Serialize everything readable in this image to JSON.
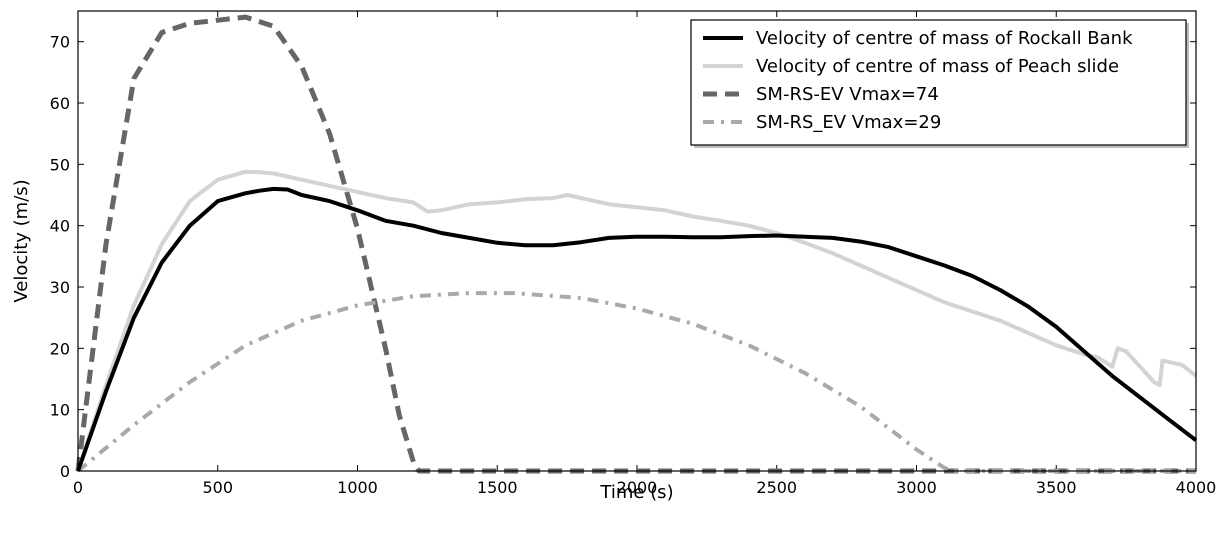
{
  "chart_data": {
    "type": "line",
    "xlabel": "Time (s)",
    "ylabel": "Velocity (m/s)",
    "xlim": [
      0,
      4000
    ],
    "ylim": [
      0,
      75
    ],
    "xticks": [
      0,
      500,
      1000,
      1500,
      2000,
      2500,
      3000,
      3500,
      4000
    ],
    "yticks": [
      0,
      10,
      20,
      30,
      40,
      50,
      60,
      70
    ],
    "grid": false,
    "legend_position": "top-right",
    "series": [
      {
        "name": "Velocity of centre of mass of Rockall Bank",
        "color": "#000000",
        "style": "solid",
        "x": [
          0,
          100,
          200,
          300,
          400,
          500,
          600,
          650,
          700,
          750,
          800,
          900,
          1000,
          1100,
          1200,
          1300,
          1400,
          1500,
          1600,
          1700,
          1800,
          1900,
          2000,
          2100,
          2200,
          2300,
          2400,
          2500,
          2600,
          2700,
          2800,
          2900,
          3000,
          3100,
          3200,
          3300,
          3400,
          3500,
          3600,
          3700,
          3800,
          3900,
          4000
        ],
        "y": [
          0,
          13,
          25,
          34,
          40,
          44,
          45.3,
          45.7,
          46,
          45.9,
          45,
          44,
          42.5,
          40.8,
          40,
          38.8,
          38,
          37.2,
          36.8,
          36.8,
          37.3,
          38,
          38.2,
          38.2,
          38.1,
          38.1,
          38.3,
          38.4,
          38.2,
          38,
          37.4,
          36.5,
          35,
          33.5,
          31.8,
          29.5,
          26.8,
          23.5,
          19.5,
          15.5,
          12,
          8.5,
          5
        ]
      },
      {
        "name": "Velocity of centre of mass of Peach slide",
        "color": "#d3d3d3",
        "style": "solid",
        "x": [
          0,
          100,
          200,
          300,
          400,
          500,
          600,
          650,
          700,
          800,
          900,
          1000,
          1100,
          1200,
          1250,
          1300,
          1400,
          1500,
          1600,
          1700,
          1750,
          1800,
          1900,
          2000,
          2100,
          2200,
          2300,
          2400,
          2500,
          2600,
          2700,
          2800,
          2900,
          3000,
          3100,
          3200,
          3300,
          3400,
          3500,
          3600,
          3650,
          3700,
          3720,
          3750,
          3800,
          3850,
          3870,
          3880,
          3900,
          3950,
          4000
        ],
        "y": [
          0,
          14,
          27,
          37,
          44,
          47.5,
          48.8,
          48.7,
          48.5,
          47.5,
          46.5,
          45.5,
          44.5,
          43.8,
          42.3,
          42.5,
          43.5,
          43.8,
          44.3,
          44.5,
          45,
          44.5,
          43.5,
          43,
          42.5,
          41.5,
          40.8,
          40,
          38.8,
          37.2,
          35.5,
          33.5,
          31.5,
          29.5,
          27.5,
          26,
          24.5,
          22.5,
          20.5,
          19,
          18.5,
          17,
          20,
          19.5,
          17,
          14.5,
          14,
          18,
          17.8,
          17.3,
          15.5
        ]
      },
      {
        "name": "SM-RS-EV Vmax=74",
        "color": "#666666",
        "style": "dashed",
        "x": [
          0,
          100,
          200,
          300,
          400,
          500,
          600,
          700,
          800,
          900,
          1000,
          1100,
          1150,
          1200,
          1220,
          1300,
          1500,
          2000,
          2500,
          3000,
          3500,
          4000
        ],
        "y": [
          0,
          37,
          64,
          71.5,
          73,
          73.5,
          74,
          72.5,
          66,
          55,
          39.5,
          20,
          9,
          1.5,
          0,
          0,
          0,
          0,
          0,
          0,
          0,
          0
        ]
      },
      {
        "name": "SM-RS_EV Vmax=29",
        "color": "#a9a9a9",
        "style": "dashdot",
        "x": [
          0,
          200,
          400,
          600,
          800,
          1000,
          1200,
          1400,
          1560,
          1800,
          2000,
          2200,
          2400,
          2600,
          2800,
          3000,
          3100,
          3130,
          3200,
          3500,
          4000
        ],
        "y": [
          0,
          7.5,
          14.5,
          20.5,
          24.5,
          27,
          28.5,
          29,
          29,
          28.2,
          26.5,
          24,
          20.5,
          16,
          10.5,
          3.5,
          0.5,
          0,
          0,
          0,
          0
        ]
      }
    ]
  }
}
